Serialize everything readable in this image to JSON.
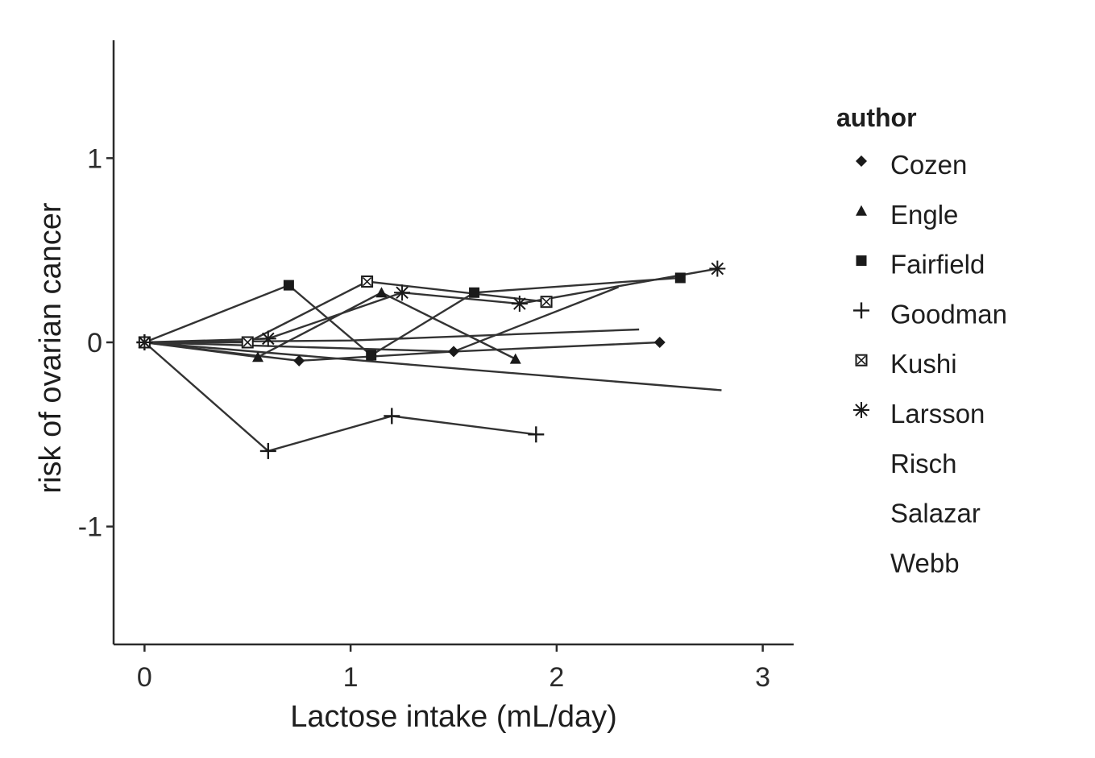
{
  "chart_data": {
    "type": "line",
    "xlabel": "Lactose intake (mL/day)",
    "ylabel": "risk of ovarian cancer",
    "xlim": [
      -0.15,
      3.15
    ],
    "ylim": [
      -1.64,
      1.64
    ],
    "xticks": [
      0,
      1,
      2,
      3
    ],
    "yticks": [
      -1,
      0,
      1
    ],
    "grid": false,
    "legend_title": "author",
    "legend_position": "right",
    "series": [
      {
        "name": "Cozen",
        "marker": "diamond",
        "x": [
          0,
          0.75,
          1.5,
          2.5
        ],
        "y": [
          0,
          -0.1,
          -0.05,
          0.0
        ]
      },
      {
        "name": "Engle",
        "marker": "triangle",
        "x": [
          0,
          0.55,
          1.15,
          1.8
        ],
        "y": [
          0,
          -0.08,
          0.27,
          -0.09
        ]
      },
      {
        "name": "Fairfield",
        "marker": "square",
        "x": [
          0,
          0.7,
          1.1,
          1.6,
          2.6
        ],
        "y": [
          0,
          0.31,
          -0.07,
          0.27,
          0.35
        ]
      },
      {
        "name": "Goodman",
        "marker": "plus",
        "x": [
          0,
          0.6,
          1.2,
          1.9
        ],
        "y": [
          0,
          -0.59,
          -0.4,
          -0.5
        ]
      },
      {
        "name": "Kushi",
        "marker": "boxed-x",
        "x": [
          0,
          0.5,
          1.08,
          1.95
        ],
        "y": [
          0,
          0.0,
          0.33,
          0.22
        ]
      },
      {
        "name": "Larsson",
        "marker": "star",
        "x": [
          0,
          0.6,
          1.25,
          1.82,
          2.78
        ],
        "y": [
          0,
          0.02,
          0.27,
          0.21,
          0.4
        ]
      },
      {
        "name": "Risch",
        "marker": "none",
        "x": [
          0,
          1.6,
          2.8
        ],
        "y": [
          0,
          -0.15,
          -0.26
        ]
      },
      {
        "name": "Salazar",
        "marker": "none",
        "x": [
          0,
          1.0,
          2.4
        ],
        "y": [
          0,
          0.01,
          0.07
        ]
      },
      {
        "name": "Webb",
        "marker": "none",
        "x": [
          0,
          1.5,
          2.3
        ],
        "y": [
          0,
          -0.05,
          0.3
        ]
      }
    ]
  }
}
